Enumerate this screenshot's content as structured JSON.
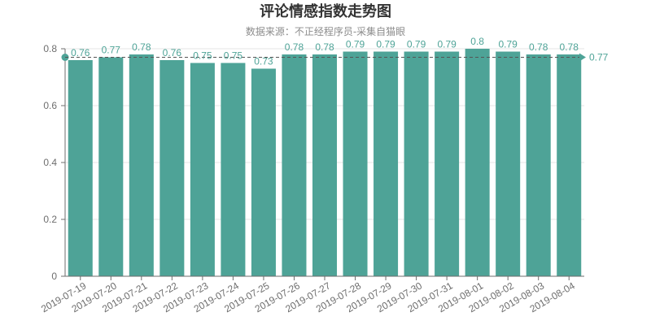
{
  "chart_data": {
    "type": "bar",
    "title": "评论情感指数走势图",
    "subtitle": "数据来源：不正经程序员-采集自猫眼",
    "categories": [
      "2019-07-19",
      "2019-07-20",
      "2019-07-21",
      "2019-07-22",
      "2019-07-23",
      "2019-07-24",
      "2019-07-25",
      "2019-07-26",
      "2019-07-27",
      "2019-07-28",
      "2019-07-29",
      "2019-07-30",
      "2019-07-31",
      "2019-08-01",
      "2019-08-02",
      "2019-08-03",
      "2019-08-04"
    ],
    "values": [
      0.76,
      0.77,
      0.78,
      0.76,
      0.75,
      0.75,
      0.73,
      0.78,
      0.78,
      0.79,
      0.79,
      0.79,
      0.79,
      0.8,
      0.79,
      0.78,
      0.78
    ],
    "value_labels": [
      "0.76",
      "0.77",
      "0.78",
      "0.76",
      "0.75",
      "0.75",
      "0.73",
      "0.78",
      "0.78",
      "0.79",
      "0.79",
      "0.79",
      "0.79",
      "0.8",
      "0.79",
      "0.78",
      "0.78"
    ],
    "ylim": [
      0,
      0.8
    ],
    "yticks": [
      0,
      0.2,
      0.4,
      0.6,
      0.8
    ],
    "ytick_labels": [
      "0",
      "0.2",
      "0.4",
      "0.6",
      "0.8"
    ],
    "mark_line": {
      "type": "average",
      "value": 0.77,
      "label": "0.77"
    },
    "xlabel": "",
    "ylabel": "",
    "grid": true,
    "colors": {
      "bar": "#4ea397",
      "bar_label": "#4ea397",
      "mark_line": "#4ea397",
      "grid": "#e6e6e6",
      "axis": "#6e6e6e"
    }
  }
}
